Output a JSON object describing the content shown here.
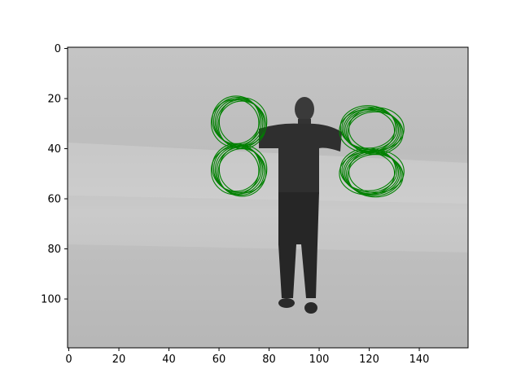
{
  "chart_data": {
    "type": "image",
    "image_size": [
      160,
      120
    ],
    "xlim": [
      -0.5,
      159.5
    ],
    "ylim": [
      119.5,
      -0.5
    ],
    "x_ticks": [
      0,
      20,
      40,
      60,
      80,
      100,
      120,
      140
    ],
    "y_ticks": [
      0,
      20,
      40,
      60,
      80,
      100
    ],
    "title": "",
    "xlabel": "",
    "ylabel": "",
    "grid": false,
    "legend": "none",
    "overlay": {
      "mark": "figure-eight-curves",
      "color": "#008000",
      "series": [
        {
          "center_x": 68,
          "center_y": 39,
          "lobe_radius_x": 9.5,
          "lobe_radius_y": 9.5,
          "traces": [
            {
              "dx": -1.2,
              "dy": -1.0
            },
            {
              "dx": -0.6,
              "dy": -0.5
            },
            {
              "dx": 0.0,
              "dy": 0.0
            },
            {
              "dx": 0.6,
              "dy": 0.5
            },
            {
              "dx": 1.2,
              "dy": 1.0
            },
            {
              "dx": 1.6,
              "dy": -0.3
            },
            {
              "dx": -1.6,
              "dy": 0.3
            }
          ]
        },
        {
          "center_x": 121,
          "center_y": 41,
          "lobe_radius_x": 11,
          "lobe_radius_y": 8.5,
          "traces": [
            {
              "dx": -1.5,
              "dy": -1.2
            },
            {
              "dx": -0.9,
              "dy": -0.6
            },
            {
              "dx": -0.3,
              "dy": 0.0
            },
            {
              "dx": 0.3,
              "dy": 0.3
            },
            {
              "dx": 0.9,
              "dy": 0.8
            },
            {
              "dx": 1.5,
              "dy": 1.3
            },
            {
              "dx": 1.9,
              "dy": -0.4
            },
            {
              "dx": -1.9,
              "dy": 0.4
            }
          ]
        }
      ]
    }
  }
}
